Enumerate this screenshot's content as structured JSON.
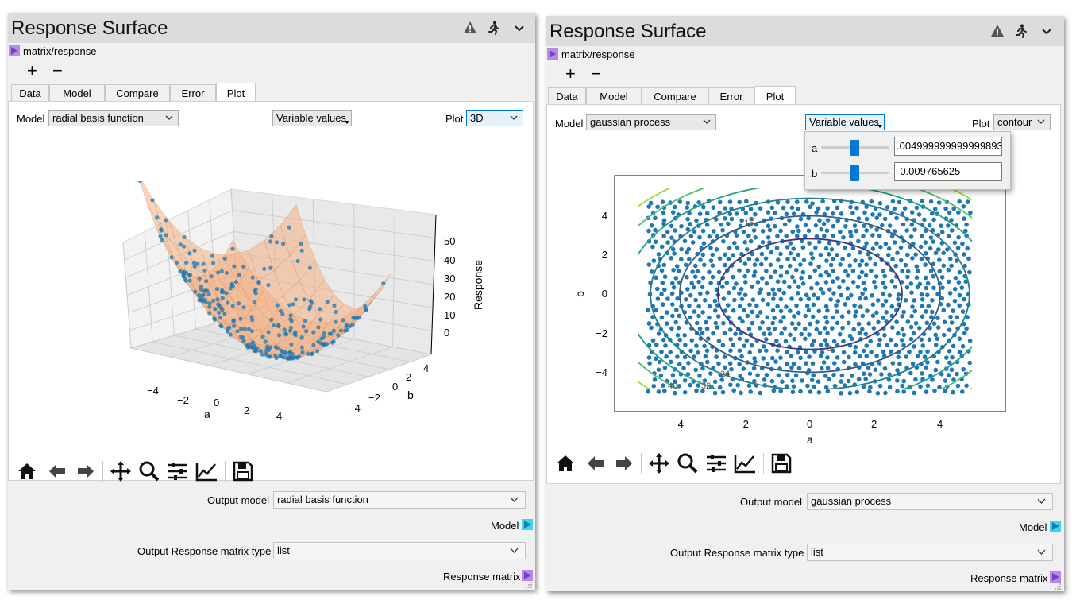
{
  "left": {
    "title": "Response Surface",
    "input_port": "matrix/response",
    "plus": "+",
    "minus": "−",
    "tabs": [
      "Data",
      "Model",
      "Compare",
      "Error",
      "Plot"
    ],
    "active_tab": "Plot",
    "model_label": "Model",
    "model_value": "radial basis function",
    "variable_values_label": "Variable values",
    "plot_label": "Plot",
    "plot_value": "3D",
    "plot3d": {
      "zlabel": "Response",
      "xlabel": "a",
      "ylabel": "b",
      "z_ticks": [
        "50",
        "40",
        "30",
        "20",
        "10",
        "0"
      ],
      "a_ticks": [
        "−4",
        "−2",
        "0",
        "2",
        "4"
      ],
      "b_ticks": [
        "4",
        "2",
        "0",
        "−2",
        "−4"
      ]
    },
    "output_model_label": "Output model",
    "output_model_value": "radial basis function",
    "model_port_label": "Model",
    "output_matrix_type_label": "Output Response matrix type",
    "output_matrix_type_value": "list",
    "response_matrix_label": "Response matrix"
  },
  "right": {
    "title": "Response Surface",
    "input_port": "matrix/response",
    "plus": "+",
    "minus": "−",
    "tabs": [
      "Data",
      "Model",
      "Compare",
      "Error",
      "Plot"
    ],
    "active_tab": "Plot",
    "model_label": "Model",
    "model_value": "gaussian process",
    "variable_values_label": "Variable values",
    "plot_label": "Plot",
    "plot_value": "contour",
    "popup": {
      "a_label": "a",
      "a_value": ".004999999999999893",
      "b_label": "b",
      "b_value": "-0.009765625"
    },
    "contour": {
      "xlabel": "a",
      "ylabel": "b",
      "x_ticks": [
        "−4",
        "−2",
        "0",
        "2",
        "4"
      ],
      "y_ticks": [
        "4",
        "2",
        "0",
        "−2",
        "−4"
      ],
      "levels": [
        "8",
        "16",
        "24",
        "32",
        "40"
      ]
    },
    "output_model_label": "Output model",
    "output_model_value": "gaussian process",
    "model_port_label": "Model",
    "output_matrix_type_label": "Output Response matrix type",
    "output_matrix_type_value": "list",
    "response_matrix_label": "Response matrix"
  },
  "colors": {
    "accent": "#0078d7",
    "input_port": "#b58be6",
    "output_port": "#3fd3f0",
    "scatter": "#1f77b4",
    "surface": "#f4b183"
  },
  "icons": [
    "warning-icon",
    "running-man-icon",
    "chevron-down-icon",
    "home-icon",
    "back-arrow-icon",
    "forward-arrow-icon",
    "pan-icon",
    "zoom-icon",
    "subplots-config-icon",
    "axes-edit-icon",
    "save-icon"
  ]
}
